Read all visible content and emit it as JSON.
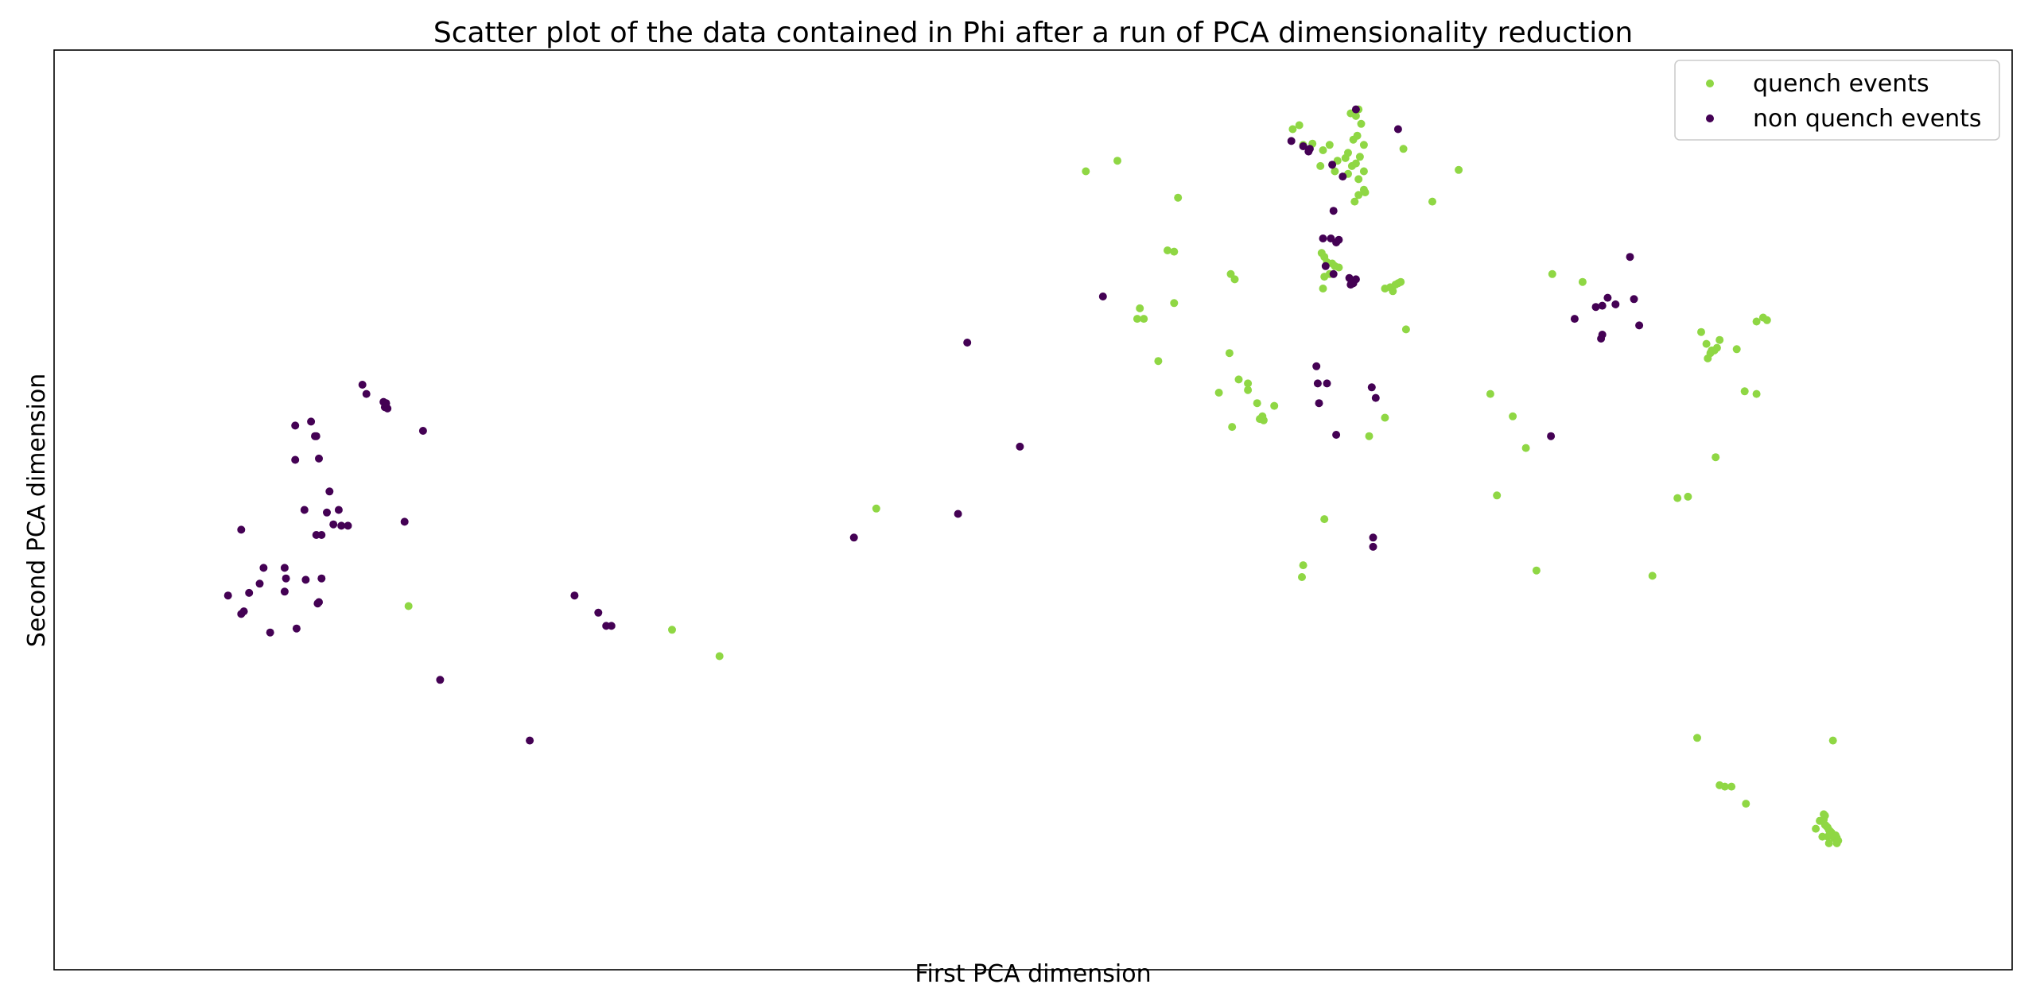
{
  "chart_data": {
    "type": "scatter",
    "title": "Scatter plot of the data contained in Phi after a run of PCA dimensionality reduction",
    "xlabel": "First PCA dimension",
    "ylabel": "Second PCA dimension",
    "xlim": [
      0,
      1486
    ],
    "ylim": [
      0,
      698
    ],
    "show_ticks": false,
    "grid": false,
    "legend": "top-right",
    "series": [
      {
        "name": "quench events",
        "color": "#8fd744",
        "points": [
          [
            269,
            276
          ],
          [
            469,
            258
          ],
          [
            505,
            238
          ],
          [
            624,
            350
          ],
          [
            783,
            606
          ],
          [
            807,
            614
          ],
          [
            853,
            586
          ],
          [
            845,
            546
          ],
          [
            850,
            545
          ],
          [
            824,
            502
          ],
          [
            822,
            494
          ],
          [
            827,
            494
          ],
          [
            850,
            506
          ],
          [
            838,
            462
          ],
          [
            893,
            528
          ],
          [
            896,
            524
          ],
          [
            892,
            468
          ],
          [
            906,
            445
          ],
          [
            899,
            448
          ],
          [
            906,
            440
          ],
          [
            884,
            438
          ],
          [
            894,
            412
          ],
          [
            913,
            430
          ],
          [
            915,
            418
          ],
          [
            918,
            417
          ],
          [
            926,
            428
          ],
          [
            917,
            420
          ],
          [
            945,
            641
          ],
          [
            940,
            638
          ],
          [
            948,
            626
          ],
          [
            955,
            627
          ],
          [
            961,
            610
          ],
          [
            963,
            622
          ],
          [
            968,
            626
          ],
          [
            974,
            614
          ],
          [
            972,
            606
          ],
          [
            984,
            650
          ],
          [
            990,
            653
          ],
          [
            992,
            642
          ],
          [
            988,
            648
          ],
          [
            986,
            630
          ],
          [
            989,
            633
          ],
          [
            991,
            617
          ],
          [
            994,
            626
          ],
          [
            985,
            610
          ],
          [
            994,
            606
          ],
          [
            990,
            600
          ],
          [
            995,
            590
          ],
          [
            987,
            583
          ],
          [
            994,
            592
          ],
          [
            982,
            604
          ],
          [
            988,
            612
          ],
          [
            980,
            616
          ],
          [
            982,
            620
          ],
          [
            990,
            588
          ],
          [
            1024,
            623
          ],
          [
            1066,
            607
          ],
          [
            1046,
            583
          ],
          [
            962,
            544
          ],
          [
            964,
            541
          ],
          [
            966,
            537
          ],
          [
            970,
            536
          ],
          [
            964,
            526
          ],
          [
            968,
            528
          ],
          [
            972,
            534
          ],
          [
            975,
            533
          ],
          [
            963,
            517
          ],
          [
            1010,
            517
          ],
          [
            1018,
            520
          ],
          [
            1016,
            515
          ],
          [
            1020,
            521
          ],
          [
            1014,
            518
          ],
          [
            1022,
            522
          ],
          [
            1026,
            486
          ],
          [
            1090,
            437
          ],
          [
            1107,
            420
          ],
          [
            1117,
            396
          ],
          [
            1095,
            360
          ],
          [
            1125,
            303
          ],
          [
            1137,
            528
          ],
          [
            1160,
            522
          ],
          [
            1250,
            484
          ],
          [
            1254,
            475
          ],
          [
            1257,
            468
          ],
          [
            1260,
            470
          ],
          [
            1262,
            472
          ],
          [
            1255,
            464
          ],
          [
            1258,
            470
          ],
          [
            1264,
            478
          ],
          [
            1277,
            471
          ],
          [
            1292,
            492
          ],
          [
            1297,
            495
          ],
          [
            1300,
            493
          ],
          [
            1283,
            439
          ],
          [
            1292,
            437
          ],
          [
            1232,
            358
          ],
          [
            1240,
            359
          ],
          [
            1261,
            389
          ],
          [
            1213,
            299
          ],
          [
            1010,
            419
          ],
          [
            998,
            405
          ],
          [
            947,
            298
          ],
          [
            964,
            342
          ],
          [
            948,
            307
          ],
          [
            1247,
            176
          ],
          [
            1264,
            140
          ],
          [
            1268,
            139
          ],
          [
            1273,
            139
          ],
          [
            1284,
            126
          ],
          [
            1337,
            107
          ],
          [
            1350,
            174
          ],
          [
            1343,
            118
          ],
          [
            1340,
            113
          ],
          [
            1345,
            109
          ],
          [
            1344,
            110
          ],
          [
            1342,
            101
          ],
          [
            1346,
            101
          ],
          [
            1348,
            105
          ],
          [
            1349,
            104
          ],
          [
            1351,
            100
          ],
          [
            1352,
            102
          ],
          [
            1347,
            96
          ],
          [
            1353,
            96
          ],
          [
            1346,
            108
          ],
          [
            1344,
            117
          ],
          [
            1353,
            100
          ],
          [
            1354,
            98
          ],
          [
            1343,
            114
          ],
          [
            1347,
            106
          ],
          [
            1349,
            102
          ]
        ]
      },
      {
        "name": "non quench events",
        "color": "#440154",
        "points": [
          [
            142,
            334
          ],
          [
            132,
            284
          ],
          [
            144,
            272
          ],
          [
            142,
            270
          ],
          [
            148,
            286
          ],
          [
            156,
            293
          ],
          [
            159,
            305
          ],
          [
            175,
            287
          ],
          [
            164,
            256
          ],
          [
            175,
            305
          ],
          [
            176,
            297
          ],
          [
            184,
            259
          ],
          [
            191,
            296
          ],
          [
            199,
            330
          ],
          [
            201,
            279
          ],
          [
            203,
            297
          ],
          [
            203,
            330
          ],
          [
            200,
            278
          ],
          [
            212,
            338
          ],
          [
            183,
            413
          ],
          [
            190,
            349
          ],
          [
            183,
            387
          ],
          [
            198,
            405
          ],
          [
            195,
            416
          ],
          [
            201,
            388
          ],
          [
            199,
            405
          ],
          [
            209,
            363
          ],
          [
            216,
            349
          ],
          [
            218,
            337
          ],
          [
            207,
            347
          ],
          [
            223,
            337
          ],
          [
            234,
            444
          ],
          [
            237,
            437
          ],
          [
            250,
            431
          ],
          [
            251,
            427
          ],
          [
            253,
            426
          ],
          [
            252,
            430
          ],
          [
            266,
            340
          ],
          [
            280,
            409
          ],
          [
            293,
            220
          ],
          [
            361,
            174
          ],
          [
            395,
            284
          ],
          [
            413,
            271
          ],
          [
            419,
            261
          ],
          [
            423,
            261
          ],
          [
            607,
            328
          ],
          [
            686,
            346
          ],
          [
            693,
            476
          ],
          [
            733,
            397
          ],
          [
            796,
            511
          ],
          [
            939,
            629
          ],
          [
            952,
            621
          ],
          [
            948,
            625
          ],
          [
            953,
            623
          ],
          [
            970,
            611
          ],
          [
            988,
            653
          ],
          [
            1020,
            638
          ],
          [
            978,
            602
          ],
          [
            971,
            576
          ],
          [
            969,
            555
          ],
          [
            973,
            552
          ],
          [
            975,
            554
          ],
          [
            963,
            555
          ],
          [
            965,
            534
          ],
          [
            971,
            528
          ],
          [
            984,
            520
          ],
          [
            988,
            524
          ],
          [
            986,
            521
          ],
          [
            983,
            525
          ],
          [
            958,
            458
          ],
          [
            959,
            445
          ],
          [
            960,
            430
          ],
          [
            966,
            445
          ],
          [
            973,
            406
          ],
          [
            1000,
            442
          ],
          [
            1003,
            434
          ],
          [
            1001,
            328
          ],
          [
            1001,
            321
          ],
          [
            1154,
            494
          ],
          [
            1170,
            503
          ],
          [
            1175,
            504
          ],
          [
            1179,
            510
          ],
          [
            1196,
            541
          ],
          [
            1185,
            505
          ],
          [
            1199,
            509
          ],
          [
            1203,
            489
          ],
          [
            1174,
            479
          ],
          [
            1175,
            482
          ],
          [
            1136,
            405
          ]
        ]
      }
    ]
  }
}
